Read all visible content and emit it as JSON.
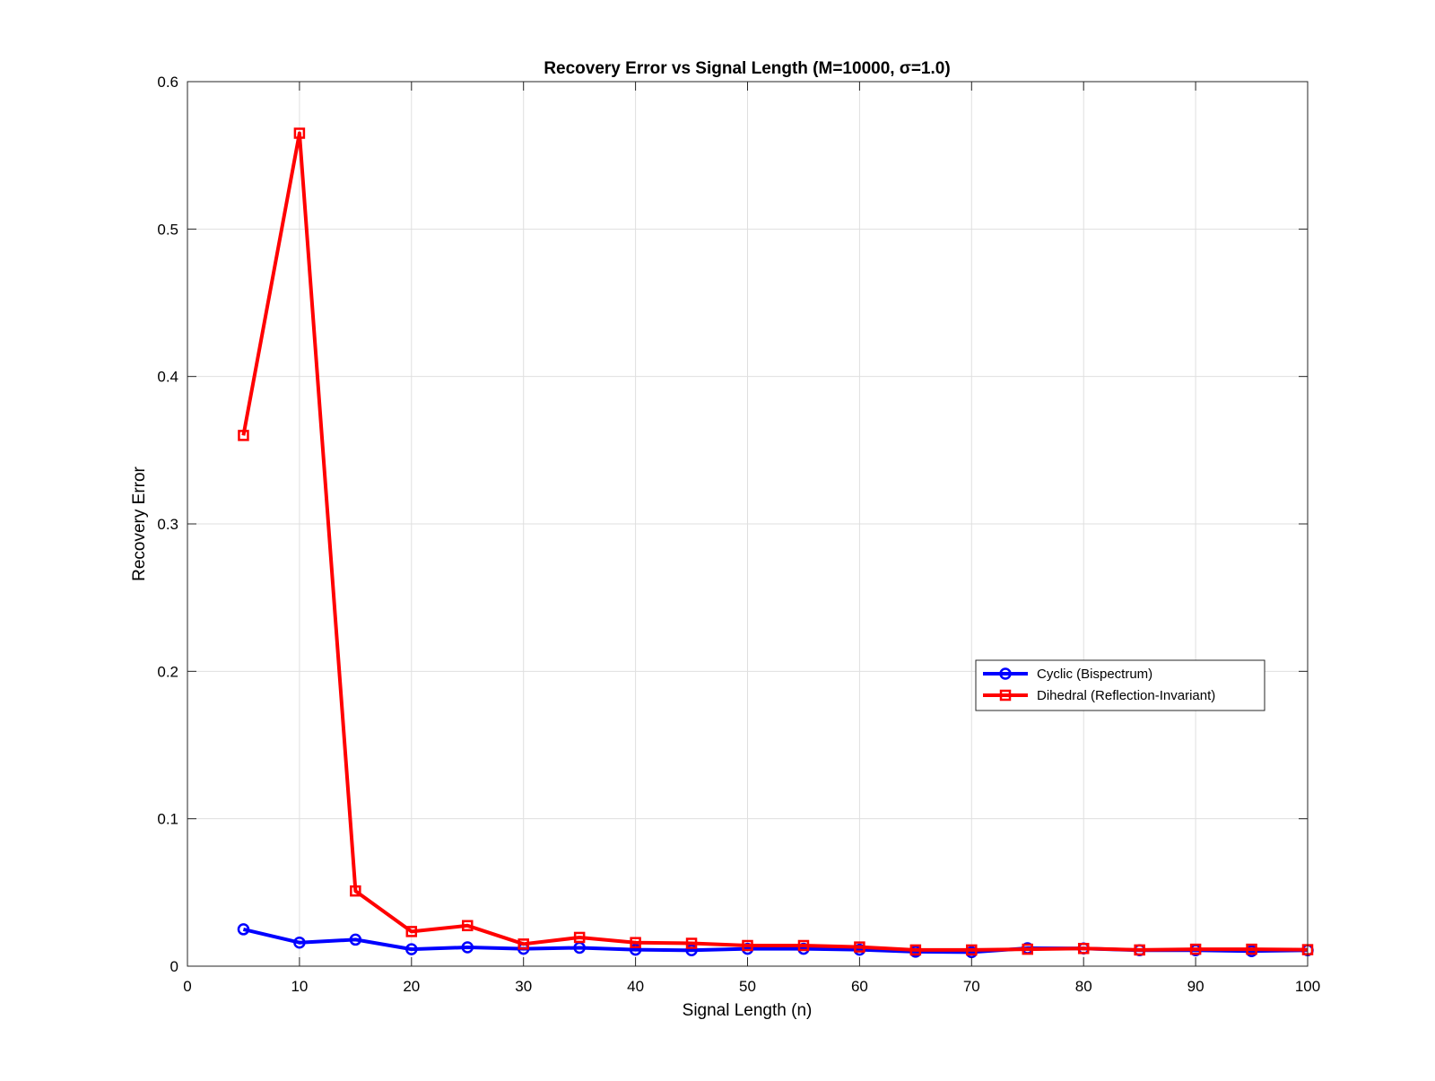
{
  "chart_data": {
    "type": "line",
    "title": "Recovery Error vs Signal Length (M=10000, σ=1.0)",
    "xlabel": "Signal Length (n)",
    "ylabel": "Recovery Error",
    "xlim": [
      0,
      100
    ],
    "ylim": [
      0,
      0.6
    ],
    "xticks": [
      "0",
      "10",
      "20",
      "30",
      "40",
      "50",
      "60",
      "70",
      "80",
      "90",
      "100"
    ],
    "yticks": [
      "0",
      "0.1",
      "0.2",
      "0.3",
      "0.4",
      "0.5",
      "0.6"
    ],
    "grid": true,
    "legend_position": "right",
    "x": [
      5,
      10,
      15,
      20,
      25,
      30,
      35,
      40,
      45,
      50,
      55,
      60,
      65,
      70,
      75,
      80,
      85,
      90,
      95,
      100
    ],
    "series": [
      {
        "name": "Cyclic (Bispectrum)",
        "color": "#0000ff",
        "marker": "circle",
        "values": [
          0.025,
          0.016,
          0.018,
          0.0115,
          0.0128,
          0.0118,
          0.0125,
          0.0112,
          0.0108,
          0.0118,
          0.0118,
          0.0112,
          0.0098,
          0.0095,
          0.0122,
          0.012,
          0.0108,
          0.0108,
          0.0102,
          0.0108
        ]
      },
      {
        "name": "Dihedral (Reflection-Invariant)",
        "color": "#ff0000",
        "marker": "square",
        "values": [
          0.36,
          0.565,
          0.051,
          0.0235,
          0.0275,
          0.015,
          0.0195,
          0.016,
          0.0155,
          0.014,
          0.014,
          0.013,
          0.011,
          0.011,
          0.0115,
          0.012,
          0.011,
          0.0115,
          0.0115,
          0.0112
        ]
      }
    ]
  }
}
